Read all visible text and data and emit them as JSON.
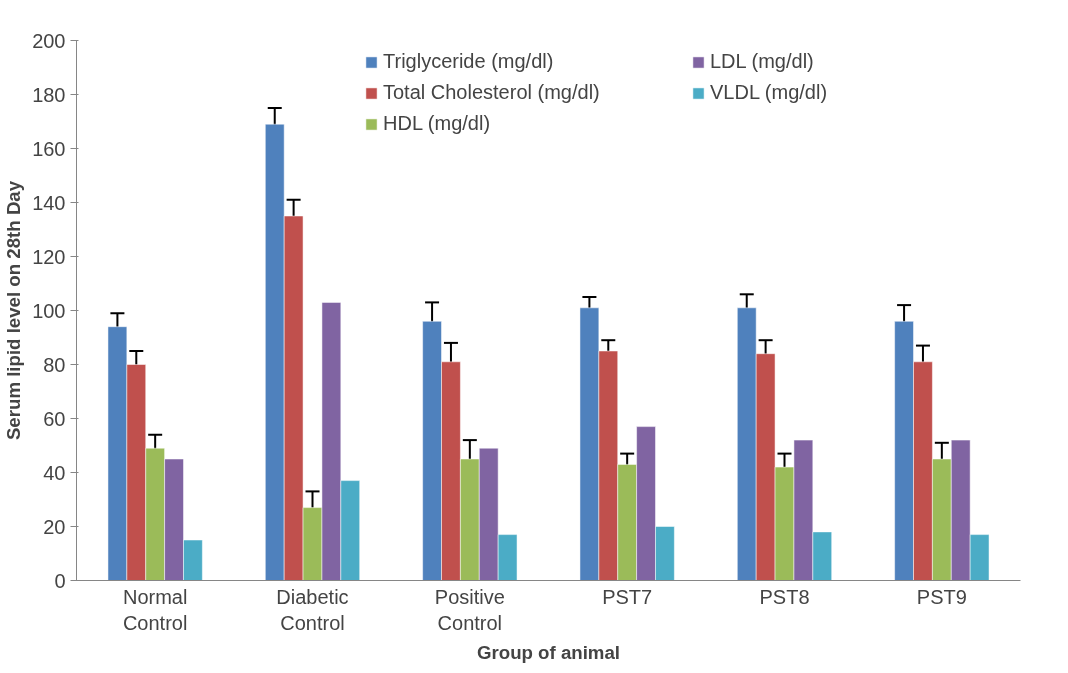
{
  "chart_data": {
    "type": "bar",
    "xlabel": "Group of animal",
    "ylabel": "Serum lipid level on 28th Day",
    "categories": [
      "Normal Control",
      "Diabetic Control",
      "Positive Control",
      "PST7",
      "PST8",
      "PST9"
    ],
    "series": [
      {
        "name": "Triglyceride (mg/dl)",
        "color": "#4f81bd",
        "values": [
          94,
          169,
          96,
          101,
          101,
          96
        ],
        "errors": [
          5,
          6,
          7,
          4,
          5,
          6
        ]
      },
      {
        "name": "Total Cholesterol (mg/dl)",
        "color": "#c0504d",
        "values": [
          80,
          135,
          81,
          85,
          84,
          81
        ],
        "errors": [
          5,
          6,
          7,
          4,
          5,
          6
        ]
      },
      {
        "name": "HDL (mg/dl)",
        "color": "#9bbb59",
        "values": [
          49,
          27,
          45,
          43,
          42,
          45
        ],
        "errors": [
          5,
          6,
          7,
          4,
          5,
          6
        ]
      },
      {
        "name": "LDL (mg/dl)",
        "color": "#8064a2",
        "values": [
          45,
          103,
          49,
          57,
          52,
          52
        ]
      },
      {
        "name": "VLDL (mg/dl)",
        "color": "#4bacc6",
        "values": [
          15,
          37,
          17,
          20,
          18,
          17
        ]
      }
    ],
    "ylim": [
      0,
      200
    ],
    "yticks": [
      0,
      20,
      40,
      60,
      80,
      100,
      120,
      140,
      160,
      180,
      200
    ],
    "grid": false,
    "legend": "top right"
  }
}
